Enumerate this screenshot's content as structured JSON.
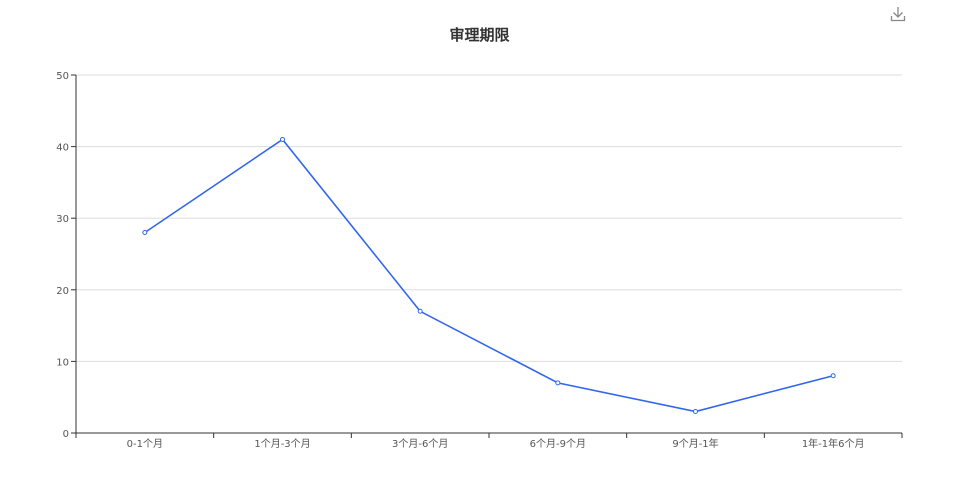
{
  "toolbar": {
    "download_icon": "download-icon"
  },
  "colors": {
    "line": "#3366ee",
    "grid": "#dddddd",
    "axis": "#333333"
  },
  "chart_data": {
    "type": "line",
    "title": "审理期限",
    "categories": [
      "0-1个月",
      "1个月-3个月",
      "3个月-6个月",
      "6个月-9个月",
      "9个月-1年",
      "1年-1年6个月"
    ],
    "series": [
      {
        "values": [
          28,
          41,
          17,
          7,
          3,
          8
        ]
      }
    ],
    "ylim": [
      0,
      50
    ],
    "yticks": [
      0,
      10,
      20,
      30,
      40,
      50
    ],
    "grid": true,
    "legend": "none"
  }
}
